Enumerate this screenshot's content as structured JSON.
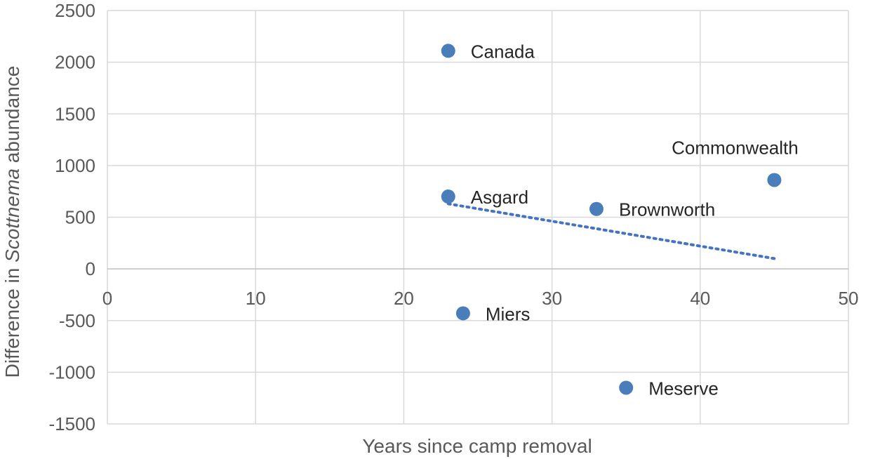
{
  "chart_data": {
    "type": "scatter",
    "xlabel": "Years since camp removal",
    "ylabel_parts": [
      "Difference in ",
      "Scottnema",
      " abundance"
    ],
    "xlim": [
      0,
      50
    ],
    "ylim": [
      -1500,
      2500
    ],
    "x_ticks": [
      0,
      10,
      20,
      30,
      40,
      50
    ],
    "y_ticks": [
      2500,
      2000,
      1500,
      1000,
      500,
      0,
      -500,
      -1000,
      -1500
    ],
    "grid": true,
    "legend": "none",
    "marker_color": "#4a7ebb",
    "trendline": {
      "style": "dotted-linear",
      "color": "#4472c4",
      "from": {
        "x": 23,
        "y": 630
      },
      "to": {
        "x": 45,
        "y": 100
      }
    },
    "points": [
      {
        "label": "Canada",
        "x": 23,
        "y": 2110,
        "label_pos": "right"
      },
      {
        "label": "Asgard",
        "x": 23,
        "y": 700,
        "label_pos": "right"
      },
      {
        "label": "Miers",
        "x": 24,
        "y": -430,
        "label_pos": "right"
      },
      {
        "label": "Brownworth",
        "x": 33,
        "y": 580,
        "label_pos": "right"
      },
      {
        "label": "Meserve",
        "x": 35,
        "y": -1150,
        "label_pos": "right"
      },
      {
        "label": "Commonwealth",
        "x": 45,
        "y": 860,
        "label_pos": "above"
      }
    ]
  }
}
